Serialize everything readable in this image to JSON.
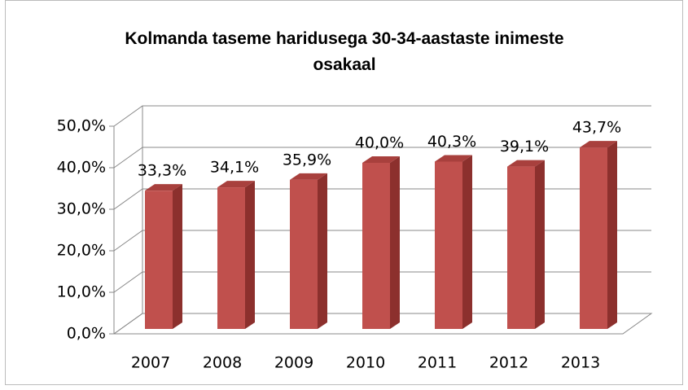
{
  "chart_data": {
    "type": "bar3d",
    "title": "Kolmanda taseme haridusega 30-34-aastaste inimeste osakaal",
    "categories": [
      "2007",
      "2008",
      "2009",
      "2010",
      "2011",
      "2012",
      "2013"
    ],
    "values": [
      33.3,
      34.1,
      35.9,
      40.0,
      40.3,
      39.1,
      43.7
    ],
    "value_labels": [
      "33,3%",
      "34,1%",
      "35,9%",
      "40,0%",
      "40,3%",
      "39,1%",
      "43,7%"
    ],
    "color": "#c0504d",
    "ylim": [
      0,
      50
    ],
    "yticks": [
      {
        "value": 0,
        "label": "0,0%"
      },
      {
        "value": 10,
        "label": "10,0%"
      },
      {
        "value": 20,
        "label": "20,0%"
      },
      {
        "value": 30,
        "label": "30,0%"
      },
      {
        "value": 40,
        "label": "40,0%"
      },
      {
        "value": 50,
        "label": "50,0%"
      }
    ],
    "grid": true
  }
}
